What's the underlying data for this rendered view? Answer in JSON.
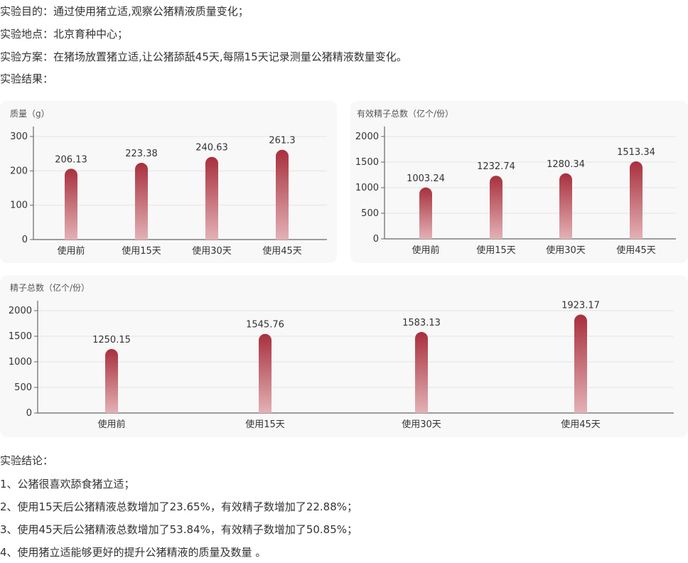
{
  "intro": {
    "purpose": "实验目的：通过使用猪立适,观察公猪精液质量变化；",
    "location": "实验地点：北京育种中心；",
    "plan": "实验方案：在猪场放置猪立适,让公猪舔舐45天,每隔15天记录测量公猪精液数量变化。",
    "results": "实验结果："
  },
  "conclusion": {
    "heading": "实验结论：",
    "items": [
      "1、公猪很喜欢舔食猪立适；",
      "2、使用15天后公猪精液总数增加了23.65%，有效精子数增加了22.88%；",
      "3、使用45天后公猪精液总数增加了53.84%，有效精子数增加了50.85%；",
      "4、使用猪立适能够更好的提升公猪精液的质量及数量 。"
    ]
  },
  "colors": {
    "bar_top": "#a8303d",
    "bar_bottom": "#e3b1b5",
    "axis": "#666666",
    "grid": "#e4e4e4",
    "card_bg": "#f8f8f8"
  },
  "chart_data": [
    {
      "id": "quality",
      "type": "bar",
      "title": "质量（g）",
      "categories": [
        "使用前",
        "使用15天",
        "使用30天",
        "使用45天"
      ],
      "values": [
        206.13,
        223.38,
        240.63,
        261.3
      ],
      "value_labels": [
        "206.13",
        "223.38",
        "240.63",
        "261.3"
      ],
      "ylim": [
        0,
        300
      ],
      "yticks": [
        0,
        100,
        200,
        300
      ],
      "grid": true,
      "legend": "none"
    },
    {
      "id": "effective",
      "type": "bar",
      "title": "有效精子总数（亿个/份）",
      "categories": [
        "使用前",
        "使用15天",
        "使用30天",
        "使用45天"
      ],
      "values": [
        1003.24,
        1232.74,
        1280.34,
        1513.34
      ],
      "value_labels": [
        "1003.24",
        "1232.74",
        "1280.34",
        "1513.34"
      ],
      "ylim": [
        0,
        2000
      ],
      "yticks": [
        0,
        500,
        1000,
        1500,
        2000
      ],
      "grid": true,
      "legend": "none"
    },
    {
      "id": "total",
      "type": "bar",
      "title": "精子总数（亿个/份）",
      "categories": [
        "使用前",
        "使用15天",
        "使用30天",
        "使用45天"
      ],
      "values": [
        1250.15,
        1545.76,
        1583.13,
        1923.17
      ],
      "value_labels": [
        "1250.15",
        "1545.76",
        "1583.13",
        "1923.17"
      ],
      "ylim": [
        0,
        2000
      ],
      "yticks": [
        0,
        500,
        1000,
        1500,
        2000
      ],
      "grid": true,
      "legend": "none"
    }
  ]
}
